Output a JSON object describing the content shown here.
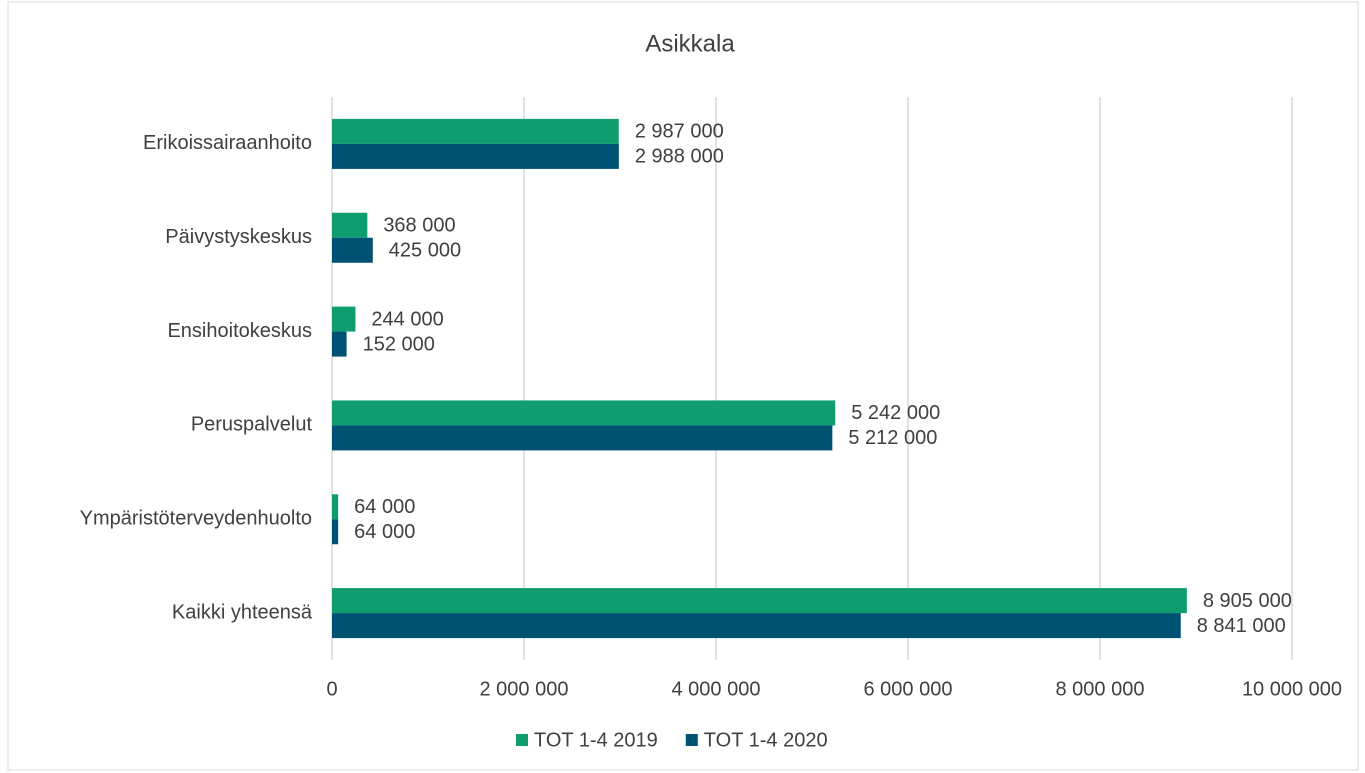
{
  "chart_data": {
    "type": "hbar",
    "title": "Asikkala",
    "categories": [
      "Erikoissairaanhoito",
      "Päivystyskeskus",
      "Ensihoitokeskus",
      "Peruspalvelut",
      "Ympäristöterveydenhuolto",
      "Kaikki yhteensä"
    ],
    "series": [
      {
        "name": "TOT 1-4 2019",
        "color": "#0f9d6f",
        "values": [
          2987000,
          368000,
          244000,
          5242000,
          64000,
          8905000
        ],
        "value_labels": [
          "2 987 000",
          "368 000",
          "244 000",
          "5 242 000",
          "64 000",
          "8 905 000"
        ]
      },
      {
        "name": "TOT 1-4 2020",
        "color": "#005273",
        "values": [
          2988000,
          425000,
          152000,
          5212000,
          64000,
          8841000
        ],
        "value_labels": [
          "2 988 000",
          "425 000",
          "152 000",
          "5 212 000",
          "64 000",
          "8 841 000"
        ]
      }
    ],
    "xlim": [
      0,
      10000000
    ],
    "xticks": [
      0,
      {
        "value": 2000000,
        "label": "2 000 000"
      },
      {
        "value": 4000000,
        "label": "4 000 000"
      },
      {
        "value": 6000000,
        "label": "6 000 000"
      },
      {
        "value": 8000000,
        "label": "8 000 000"
      },
      {
        "value": 10000000,
        "label": "10 000 000"
      }
    ],
    "grid": true,
    "legend": "bottom"
  }
}
